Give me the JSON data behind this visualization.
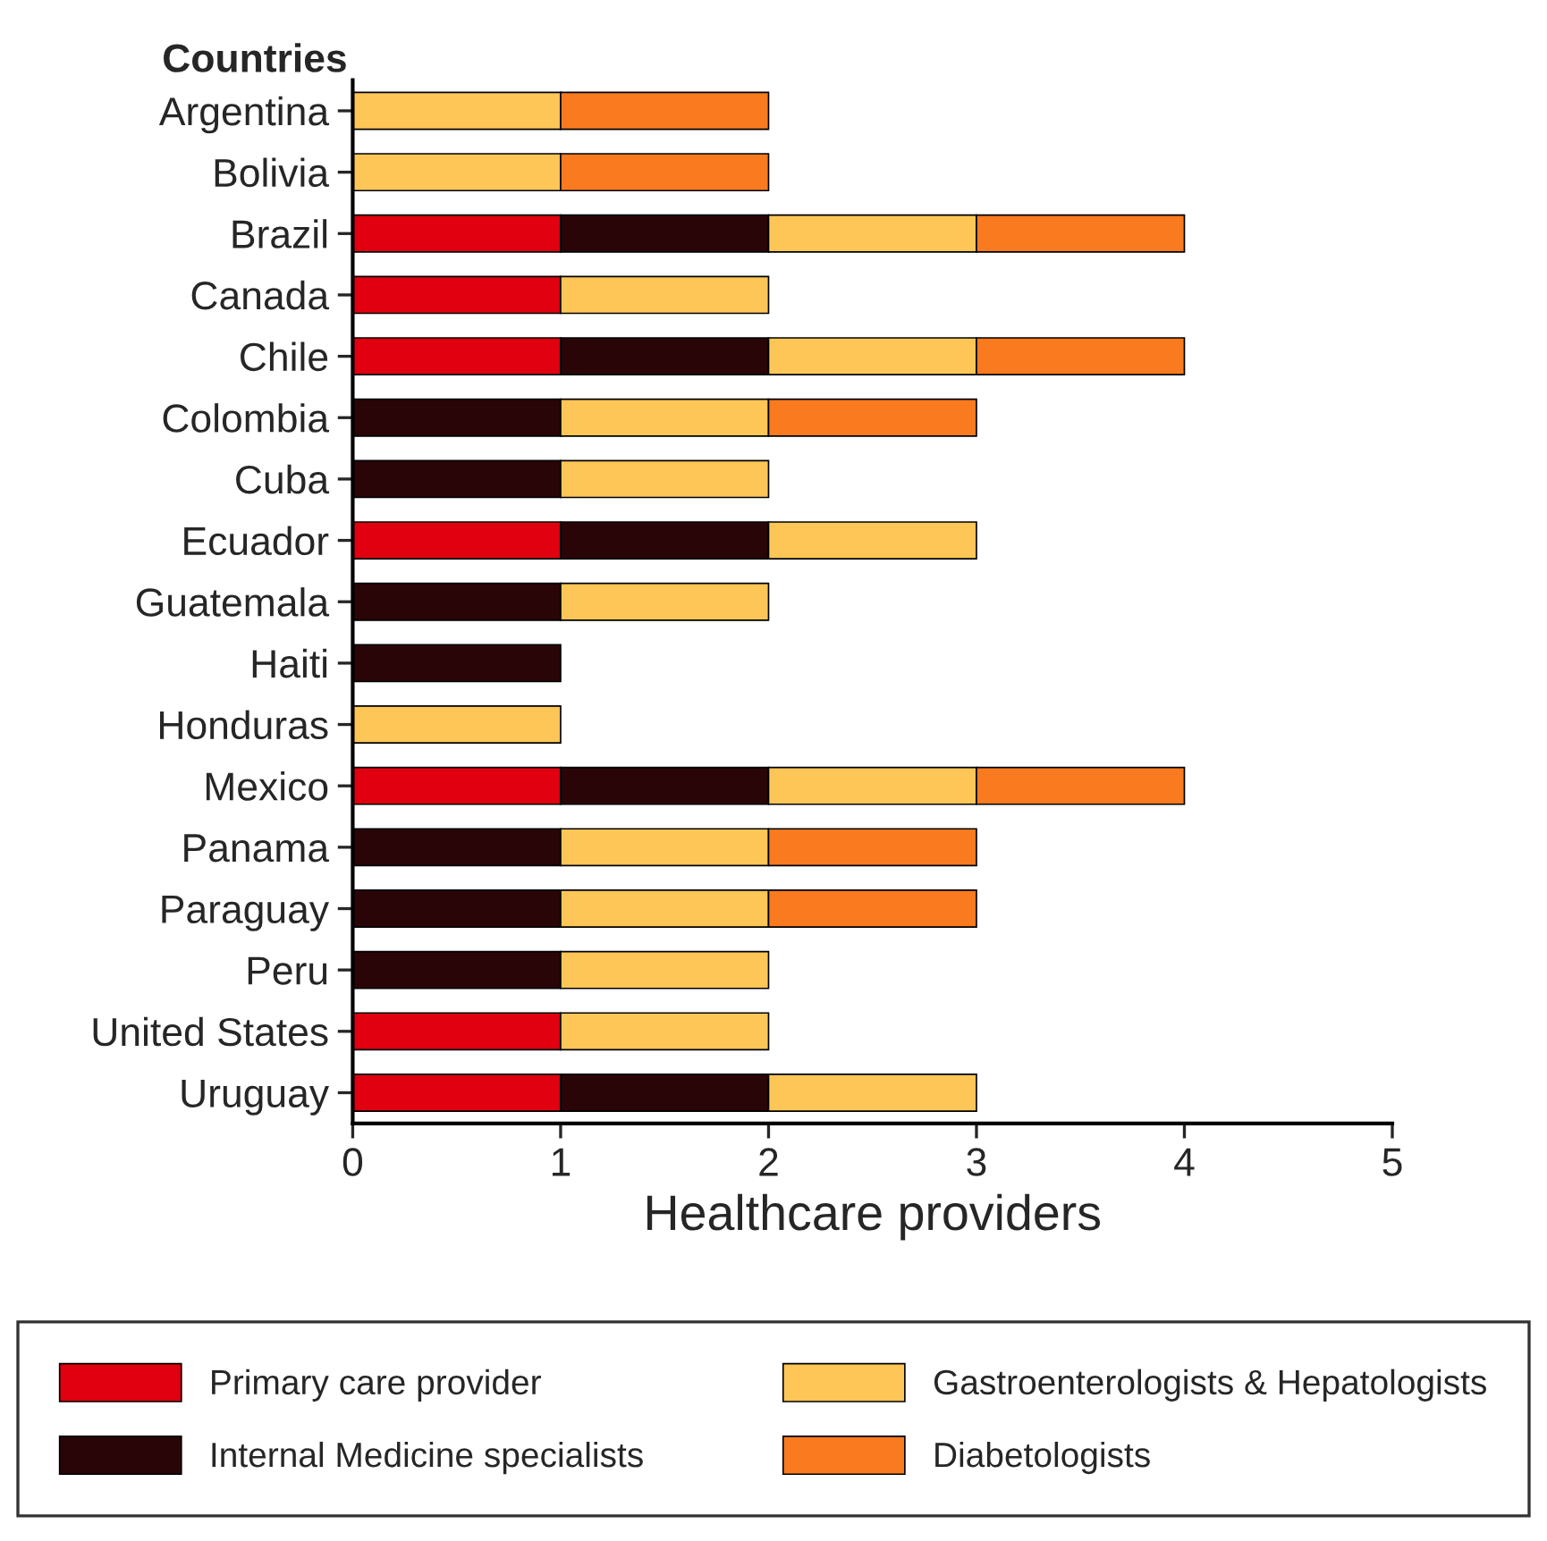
{
  "chart_data": {
    "type": "bar",
    "orientation": "horizontal",
    "stacked": true,
    "ylabel": "Countries",
    "xlabel": "Healthcare providers",
    "categories": [
      "Argentina",
      "Bolivia",
      "Brazil",
      "Canada",
      "Chile",
      "Colombia",
      "Cuba",
      "Ecuador",
      "Guatemala",
      "Haiti",
      "Honduras",
      "Mexico",
      "Panama",
      "Paraguay",
      "Peru",
      "United States",
      "Uruguay"
    ],
    "series": [
      {
        "name": "Primary care provider",
        "color": "#e0000f",
        "values": [
          null,
          null,
          1,
          1,
          1,
          null,
          null,
          1,
          null,
          null,
          null,
          1,
          null,
          null,
          null,
          1,
          1
        ]
      },
      {
        "name": "Internal Medicine specialists",
        "color": "#2a0508",
        "values": [
          null,
          null,
          1,
          null,
          1,
          1,
          1,
          1,
          1,
          1,
          null,
          1,
          1,
          1,
          1,
          null,
          1
        ]
      },
      {
        "name": "Gastroenterologists & Hepatologists",
        "color": "#fdc656",
        "values": [
          1,
          1,
          1,
          1,
          1,
          1,
          1,
          1,
          1,
          null,
          1,
          1,
          1,
          1,
          1,
          1,
          1
        ]
      },
      {
        "name": "Diabetologists",
        "color": "#f97a1f",
        "values": [
          1,
          1,
          1,
          null,
          1,
          1,
          null,
          null,
          null,
          null,
          null,
          1,
          1,
          1,
          null,
          null,
          null
        ]
      }
    ],
    "xlim": [
      0,
      5
    ],
    "xticks": [
      0,
      1,
      2,
      3,
      4,
      5
    ],
    "grid": false,
    "legend": "bottom"
  }
}
